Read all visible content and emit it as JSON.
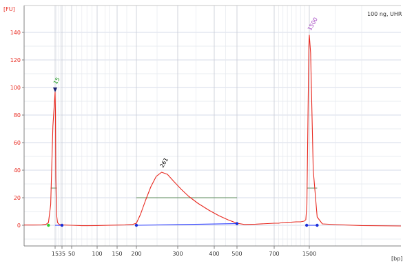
{
  "chart_data": {
    "type": "line",
    "sample_label": "100 ng, UHR",
    "y_axis_unit": "[FU]",
    "x_axis_unit": "[bp]",
    "ylim": [
      -14,
      148
    ],
    "y_ticks": [
      "0",
      "20",
      "40",
      "60",
      "80",
      "100",
      "120",
      "140"
    ],
    "x_ticks": [
      "15",
      "35",
      "50",
      "100",
      "150",
      "200",
      "300",
      "400",
      "500",
      "700",
      "1500"
    ],
    "x_tick_positions_bp": [
      15,
      35,
      50,
      100,
      150,
      200,
      300,
      400,
      500,
      700,
      1500
    ],
    "peaks": [
      {
        "label": "15",
        "bp": 15,
        "fu": 97,
        "color": "#1c9c1c"
      },
      {
        "label": "261",
        "bp": 261,
        "fu": 38.5,
        "color": "#000000"
      },
      {
        "label": "1500",
        "bp": 1500,
        "fu": 138,
        "color": "#a040c0"
      }
    ],
    "series": [
      {
        "color": "#e8281e",
        "points": [
          [
            1,
            0.2
          ],
          [
            5,
            0.2
          ],
          [
            9,
            0.3
          ],
          [
            11,
            0.8
          ],
          [
            12,
            2
          ],
          [
            13,
            15
          ],
          [
            14,
            72
          ],
          [
            15,
            97
          ],
          [
            16,
            82
          ],
          [
            17,
            35
          ],
          [
            19,
            8
          ],
          [
            22,
            2
          ],
          [
            27,
            0.6
          ],
          [
            35,
            0.3
          ],
          [
            50,
            0
          ],
          [
            70,
            -0.3
          ],
          [
            100,
            -0.2
          ],
          [
            140,
            0.1
          ],
          [
            170,
            0.3
          ],
          [
            190,
            0.6
          ],
          [
            200,
            1.5
          ],
          [
            210,
            8
          ],
          [
            222,
            18
          ],
          [
            235,
            28
          ],
          [
            248,
            35.5
          ],
          [
            261,
            38.5
          ],
          [
            275,
            37
          ],
          [
            290,
            32
          ],
          [
            310,
            26
          ],
          [
            330,
            21
          ],
          [
            355,
            16
          ],
          [
            385,
            11
          ],
          [
            420,
            7
          ],
          [
            460,
            4
          ],
          [
            500,
            1.5
          ],
          [
            540,
            0.6
          ],
          [
            600,
            0.8
          ],
          [
            700,
            1.5
          ],
          [
            800,
            1.5
          ],
          [
            900,
            2
          ],
          [
            1000,
            2.2
          ],
          [
            1100,
            2.3
          ],
          [
            1200,
            2.5
          ],
          [
            1300,
            2.5
          ],
          [
            1380,
            3
          ],
          [
            1420,
            4
          ],
          [
            1445,
            15
          ],
          [
            1470,
            80
          ],
          [
            1490,
            130
          ],
          [
            1500,
            138
          ],
          [
            1510,
            125
          ],
          [
            1530,
            40
          ],
          [
            1560,
            6
          ],
          [
            1600,
            1
          ],
          [
            1700,
            0.5
          ],
          [
            1900,
            -0.2
          ],
          [
            2200,
            -0.5
          ]
        ]
      }
    ],
    "baseline_segments": [
      {
        "x": [
          15,
          35
        ],
        "y": [
          0,
          0
        ],
        "color": "#2b3cff"
      },
      {
        "x": [
          200,
          500
        ],
        "y": [
          0,
          1.2
        ],
        "color": "#2b3cff"
      },
      {
        "x": [
          1440,
          1560
        ],
        "y": [
          0,
          0
        ],
        "color": "#2b3cff"
      }
    ],
    "region_bars": [
      {
        "x": [
          13,
          20
        ],
        "fu": 27
      },
      {
        "x": [
          200,
          500
        ],
        "fu": 20
      },
      {
        "x": [
          1450,
          1560
        ],
        "fu": 27
      }
    ],
    "markers": {
      "green": [
        [
          12,
          0
        ]
      ],
      "blue": [
        [
          35,
          0
        ],
        [
          200,
          0
        ],
        [
          500,
          1.2
        ],
        [
          1440,
          0
        ],
        [
          1560,
          0
        ]
      ],
      "triangle": [
        [
          15,
          97
        ]
      ]
    },
    "grid": true
  }
}
